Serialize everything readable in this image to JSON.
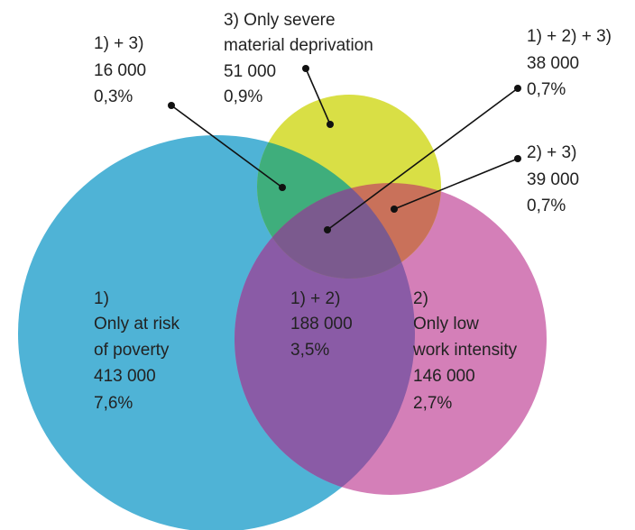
{
  "colors": {
    "poverty_circle": "#4fb3d6",
    "low_work_circle": "#d47fb8",
    "deprivation_circle": "#d9df45",
    "intersection_1_2": "#8a5ba6",
    "intersection_1_3": "#3fae7c",
    "intersection_2_3": "#c9715a",
    "intersection_1_2_3": "#7b5a8e",
    "text": "#222222",
    "leader_line": "#111111"
  },
  "regions": {
    "only_poverty": {
      "lines": [
        "1)",
        "Only at risk",
        "of poverty",
        "413 000",
        "7,6%"
      ]
    },
    "poverty_and_low_work": {
      "lines": [
        "1) + 2)",
        "188 000",
        "3,5%"
      ]
    },
    "only_low_work": {
      "lines": [
        "2)",
        "Only low",
        "work intensity",
        "146 000",
        "2,7%"
      ]
    },
    "only_deprivation": {
      "lines": [
        "3) Only severe",
        "material deprivation",
        "51 000",
        "0,9%"
      ]
    },
    "poverty_and_deprivation": {
      "lines": [
        "1) + 3)",
        "16 000",
        "0,3%"
      ]
    },
    "all_three": {
      "lines": [
        "1) + 2) + 3)",
        "38 000",
        "0,7%"
      ]
    },
    "low_work_and_deprivation": {
      "lines": [
        "2) + 3)",
        "39 000",
        "0,7%"
      ]
    }
  }
}
